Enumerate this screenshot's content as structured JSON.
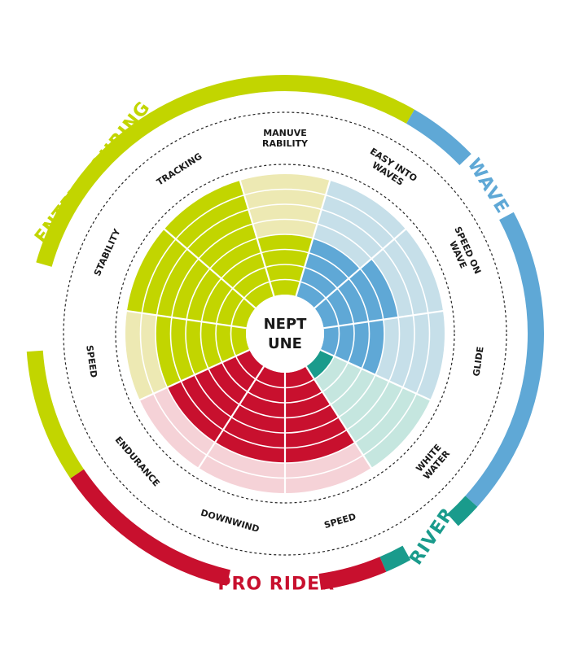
{
  "center": {
    "line1": "NEPT",
    "line2": "UNE"
  },
  "categories": [
    {
      "label": "ENTRY/TOURING",
      "color": "#c2d500"
    },
    {
      "label": "WAVE",
      "color": "#5fa8d6"
    },
    {
      "label": "RIVER",
      "color": "#1a9b8c"
    },
    {
      "label": "PRO RIDER",
      "color": "#c8102e"
    }
  ],
  "attributes": [
    {
      "lines": [
        "MANUVE",
        "RABILITY"
      ],
      "category": "ENTRY/TOURING",
      "score": 4
    },
    {
      "lines": [
        "EASY INTO",
        "WAVES"
      ],
      "category": "WAVE",
      "score": 4
    },
    {
      "lines": [
        "SPEED ON",
        "WAVE"
      ],
      "category": "WAVE",
      "score": 5
    },
    {
      "lines": [
        "GLIDE"
      ],
      "category": "WAVE",
      "score": 4
    },
    {
      "lines": [
        "WHITE",
        "WATER"
      ],
      "category": "RIVER",
      "score": 1
    },
    {
      "lines": [
        "SPEED"
      ],
      "category": "PRO RIDER",
      "score": 6
    },
    {
      "lines": [
        "DOWNWIND"
      ],
      "category": "PRO RIDER",
      "score": 6
    },
    {
      "lines": [
        "ENDURANCE"
      ],
      "category": "PRO RIDER",
      "score": 6
    },
    {
      "lines": [
        "SPEED"
      ],
      "category": "ENTRY/TOURING",
      "score": 6
    },
    {
      "lines": [
        "STABILITY"
      ],
      "category": "ENTRY/TOURING",
      "score": 8
    },
    {
      "lines": [
        "TRACKING"
      ],
      "category": "ENTRY/TOURING",
      "score": 8
    }
  ],
  "rings": 8,
  "palette": {
    "ENTRY/TOURING": {
      "light": "#ede9b3",
      "strong": "#c2d500"
    },
    "WAVE": {
      "light": "#c6dfe9",
      "strong": "#5fa8d6"
    },
    "RIVER": {
      "light": "#c5e6df",
      "strong": "#1a9b8c"
    },
    "PRO RIDER": {
      "light": "#f5d2d7",
      "strong": "#c8102e"
    }
  }
}
